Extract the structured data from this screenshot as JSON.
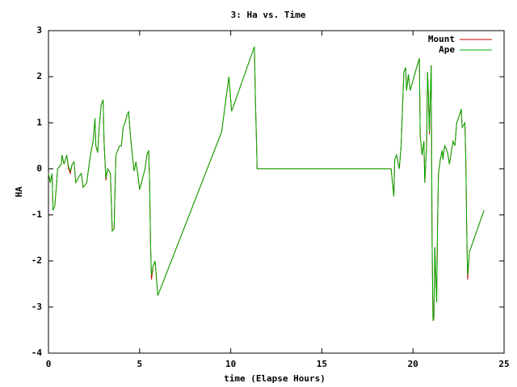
{
  "chart_data": {
    "type": "line",
    "title": "3: Ha vs. Time",
    "x_label": "time (Elapse Hours)",
    "y_label": "HA",
    "x": [
      0,
      0.1,
      0.2,
      0.25,
      0.35,
      0.45,
      0.5,
      0.7,
      0.75,
      0.85,
      1.0,
      1.1,
      1.2,
      1.3,
      1.4,
      1.5,
      1.7,
      1.8,
      1.9,
      2.1,
      2.3,
      2.45,
      2.55,
      2.6,
      2.7,
      2.8,
      2.9,
      3.0,
      3.05,
      3.15,
      3.25,
      3.4,
      3.5,
      3.6,
      3.7,
      3.9,
      4.0,
      4.1,
      4.2,
      4.3,
      4.4,
      4.5,
      4.6,
      4.7,
      4.8,
      4.9,
      5.0,
      5.1,
      5.3,
      5.4,
      5.5,
      5.55,
      5.6,
      5.65,
      5.75,
      5.85,
      6.0,
      9.5,
      9.7,
      9.8,
      9.9,
      10.05,
      11.3,
      11.35,
      11.45,
      18.8,
      18.85,
      18.95,
      19.0,
      19.1,
      19.25,
      19.35,
      19.5,
      19.6,
      19.65,
      19.75,
      19.85,
      20.2,
      20.35,
      20.4,
      20.5,
      20.6,
      20.65,
      20.75,
      20.8,
      20.85,
      20.9,
      21.0,
      21.05,
      21.1,
      21.15,
      21.2,
      21.3,
      21.35,
      21.4,
      21.5,
      21.6,
      21.65,
      21.7,
      21.75,
      21.9,
      22.0,
      22.2,
      22.3,
      22.4,
      22.5,
      22.65,
      22.7,
      22.85,
      22.9,
      22.95,
      23.0,
      23.1,
      23.9
    ],
    "series": [
      {
        "name": "Mount",
        "color": "#cc0000",
        "values": [
          -0.1,
          -0.3,
          -0.1,
          -0.9,
          -0.8,
          -0.3,
          0.0,
          0.1,
          0.3,
          0.1,
          0.3,
          0.0,
          -0.1,
          0.1,
          0.15,
          -0.3,
          -0.15,
          -0.1,
          -0.4,
          -0.3,
          0.3,
          0.6,
          1.1,
          0.5,
          0.35,
          1.0,
          1.4,
          1.5,
          0.6,
          -0.25,
          0.0,
          -0.1,
          -1.35,
          -1.3,
          0.3,
          0.5,
          0.5,
          0.9,
          1.0,
          1.15,
          1.25,
          0.7,
          0.3,
          -0.05,
          0.15,
          -0.1,
          -0.45,
          -0.3,
          0.0,
          0.3,
          0.4,
          -0.3,
          -1.6,
          -2.4,
          -2.1,
          -2.0,
          -2.75,
          0.8,
          1.4,
          1.7,
          2.0,
          1.25,
          2.65,
          1.6,
          0.0,
          0.0,
          -0.2,
          -0.6,
          0.2,
          0.3,
          0.0,
          0.5,
          2.1,
          2.2,
          1.7,
          2.05,
          1.7,
          2.2,
          2.4,
          0.7,
          0.3,
          0.6,
          -0.3,
          0.5,
          2.1,
          1.6,
          0.75,
          2.25,
          -1.6,
          -3.3,
          -3.25,
          -1.7,
          -2.9,
          -1.2,
          -0.1,
          0.2,
          0.4,
          0.2,
          0.4,
          0.5,
          0.35,
          0.1,
          0.6,
          0.5,
          1.0,
          1.1,
          1.3,
          0.9,
          1.0,
          0.2,
          -1.3,
          -2.4,
          -1.8,
          -0.9
        ]
      },
      {
        "name": "Ape",
        "color": "#00b000",
        "values": [
          -0.1,
          -0.3,
          -0.1,
          -0.9,
          -0.8,
          -0.3,
          0.0,
          0.1,
          0.3,
          0.1,
          0.3,
          0.05,
          -0.05,
          0.1,
          0.15,
          -0.3,
          -0.15,
          -0.1,
          -0.4,
          -0.3,
          0.3,
          0.6,
          1.1,
          0.5,
          0.35,
          1.0,
          1.4,
          1.5,
          0.6,
          -0.2,
          0.0,
          -0.1,
          -1.35,
          -1.3,
          0.3,
          0.5,
          0.5,
          0.9,
          1.0,
          1.15,
          1.25,
          0.7,
          0.3,
          -0.05,
          0.15,
          -0.1,
          -0.45,
          -0.3,
          0.0,
          0.3,
          0.4,
          -0.3,
          -1.6,
          -2.3,
          -2.1,
          -2.0,
          -2.75,
          0.8,
          1.4,
          1.7,
          2.0,
          1.25,
          2.65,
          1.6,
          0.0,
          0.0,
          -0.2,
          -0.6,
          0.2,
          0.3,
          0.0,
          0.5,
          2.1,
          2.2,
          1.7,
          2.05,
          1.7,
          2.2,
          2.4,
          0.7,
          0.3,
          0.6,
          -0.3,
          0.5,
          2.1,
          1.6,
          0.8,
          2.25,
          -1.6,
          -3.3,
          -3.2,
          -1.7,
          -2.9,
          -1.2,
          -0.1,
          0.2,
          0.4,
          0.2,
          0.4,
          0.5,
          0.35,
          0.1,
          0.6,
          0.5,
          1.0,
          1.1,
          1.3,
          0.9,
          1.0,
          0.2,
          -1.3,
          -2.3,
          -1.8,
          -0.9
        ]
      }
    ],
    "xlim": [
      0,
      25
    ],
    "xticks": [
      0,
      5,
      10,
      15,
      20,
      25
    ],
    "ylim": [
      -4,
      3
    ],
    "yticks": [
      -4,
      -3,
      -2,
      -1,
      0,
      1,
      2,
      3
    ],
    "legend": "top-right",
    "grid": false
  }
}
